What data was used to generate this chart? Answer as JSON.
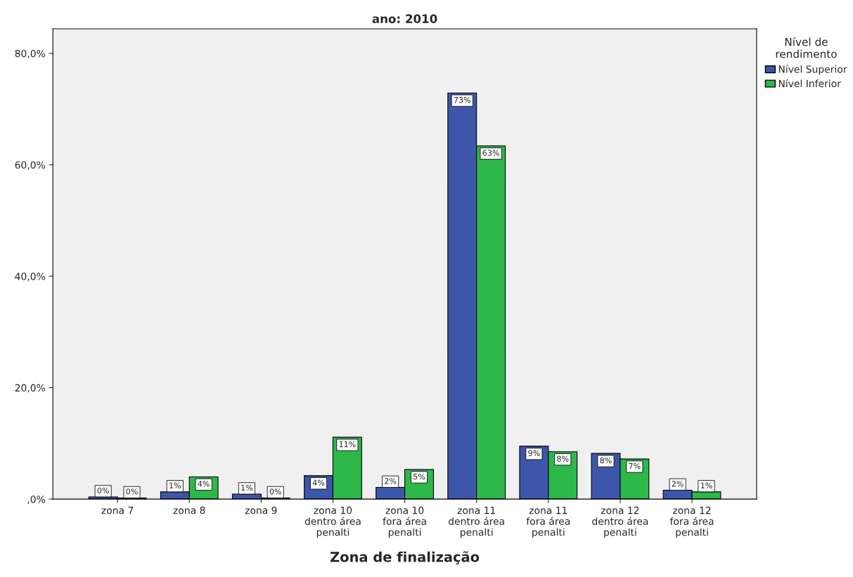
{
  "chart_data": {
    "type": "bar",
    "title": "ano: 2010",
    "xlabel": "Zona de finalização",
    "legend_title": "Nível de\nrendimento",
    "categories": [
      "zona 7",
      "zona 8",
      "zona 9",
      "zona 10\ndentro área\npenalti",
      "zona 10\nfora área\npenalti",
      "zona 11\ndentro área\npenalti",
      "zona 11\nfora área\npenalti",
      "zona 12\ndentro área\npenalti",
      "zona 12\nfora área\npenalti"
    ],
    "series": [
      {
        "name": "Nível Superior",
        "color": "#3d56ab",
        "values": [
          0.4,
          1.3,
          0.9,
          4.2,
          2.1,
          72.9,
          9.5,
          8.2,
          1.6
        ],
        "value_labels": [
          "0%",
          "1%",
          "1%",
          "4%",
          "2%",
          "73%",
          "9%",
          "8%",
          "2%"
        ]
      },
      {
        "name": "Nível Inferior",
        "color": "#2db84a",
        "values": [
          0.2,
          4.0,
          0.2,
          11.1,
          5.3,
          63.4,
          8.5,
          7.2,
          1.3
        ],
        "value_labels": [
          "0%",
          "4%",
          "0%",
          "11%",
          "5%",
          "63%",
          "8%",
          "7%",
          "1%"
        ]
      }
    ],
    "ylim": [
      0,
      84.4
    ],
    "yticks": [
      {
        "value": 0,
        "label": ",0%"
      },
      {
        "value": 20,
        "label": "20,0%"
      },
      {
        "value": 40,
        "label": "40,0%"
      },
      {
        "value": 60,
        "label": "60,0%"
      },
      {
        "value": 80,
        "label": "80,0%"
      }
    ],
    "legend": "right",
    "grid": false
  }
}
